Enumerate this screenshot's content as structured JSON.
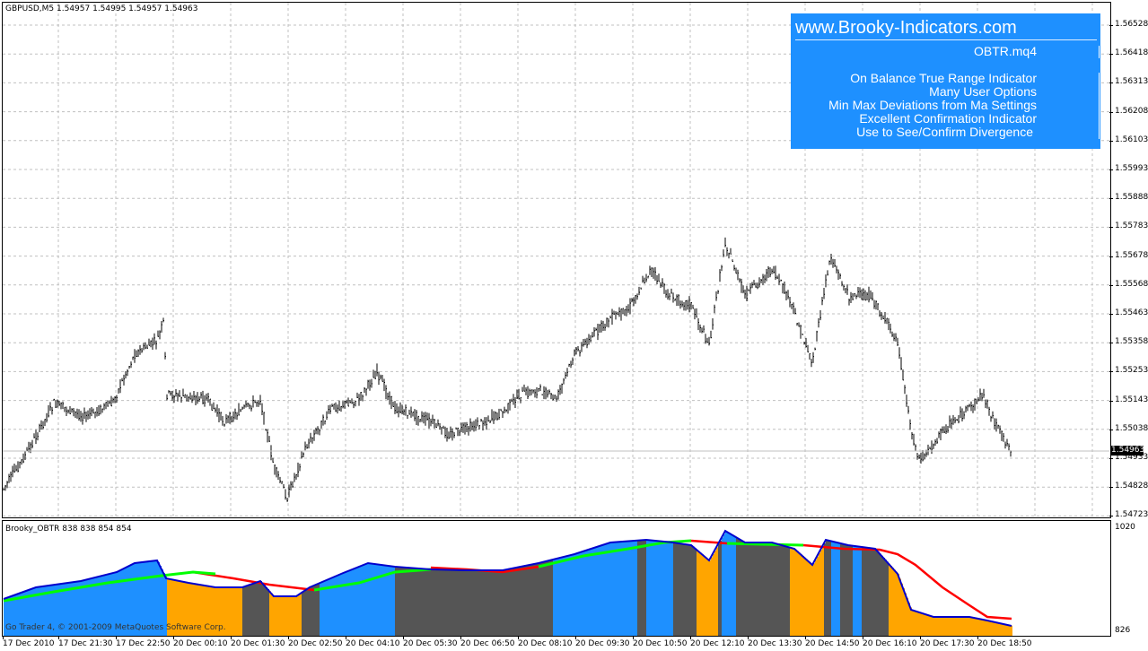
{
  "chart": {
    "symbol_header": "GBPUSD,M5  1.54957 1.54995 1.54957 1.54963",
    "current_price": "1.54963",
    "price_axis": [
      "1.56528",
      "1.56418",
      "1.56313",
      "1.56208",
      "1.56103",
      "1.55993",
      "1.55888",
      "1.55783",
      "1.55678",
      "1.55568",
      "1.55463",
      "1.55358",
      "1.55253",
      "1.55143",
      "1.55038",
      "1.54933",
      "1.54828",
      "1.54723"
    ],
    "time_axis": [
      "17 Dec 2010",
      "17 Dec 21:30",
      "17 Dec 22:50",
      "20 Dec 00:10",
      "20 Dec 01:30",
      "20 Dec 02:50",
      "20 Dec 04:10",
      "20 Dec 05:30",
      "20 Dec 06:50",
      "20 Dec 08:10",
      "20 Dec 09:30",
      "20 Dec 10:50",
      "20 Dec 12:10",
      "20 Dec 13:30",
      "20 Dec 14:50",
      "20 Dec 16:10",
      "20 Dec 17:30",
      "20 Dec 18:50"
    ]
  },
  "ad": {
    "site": "www.Brooky-Indicators.com",
    "file": "OBTR.mq4",
    "lines": [
      "On Balance True Range Indicator",
      "Many User Options",
      "Min Max Deviations from Ma Settings",
      "Excellent Confirmation Indicator",
      "Use to See/Confirm Divergence"
    ]
  },
  "indicator": {
    "header": "Brooky_OBTR 838 838 854 854",
    "max_label": "1020",
    "min_label": "826",
    "copyright": "Go Trader 4, © 2001-2009 MetaQuotes Software Corp.",
    "colors": {
      "blue": "#1e90ff",
      "orange": "#ffa500",
      "gray": "#555555",
      "line_blue": "#0000cd",
      "green": "#00ff00",
      "red": "#ff0000"
    }
  }
}
